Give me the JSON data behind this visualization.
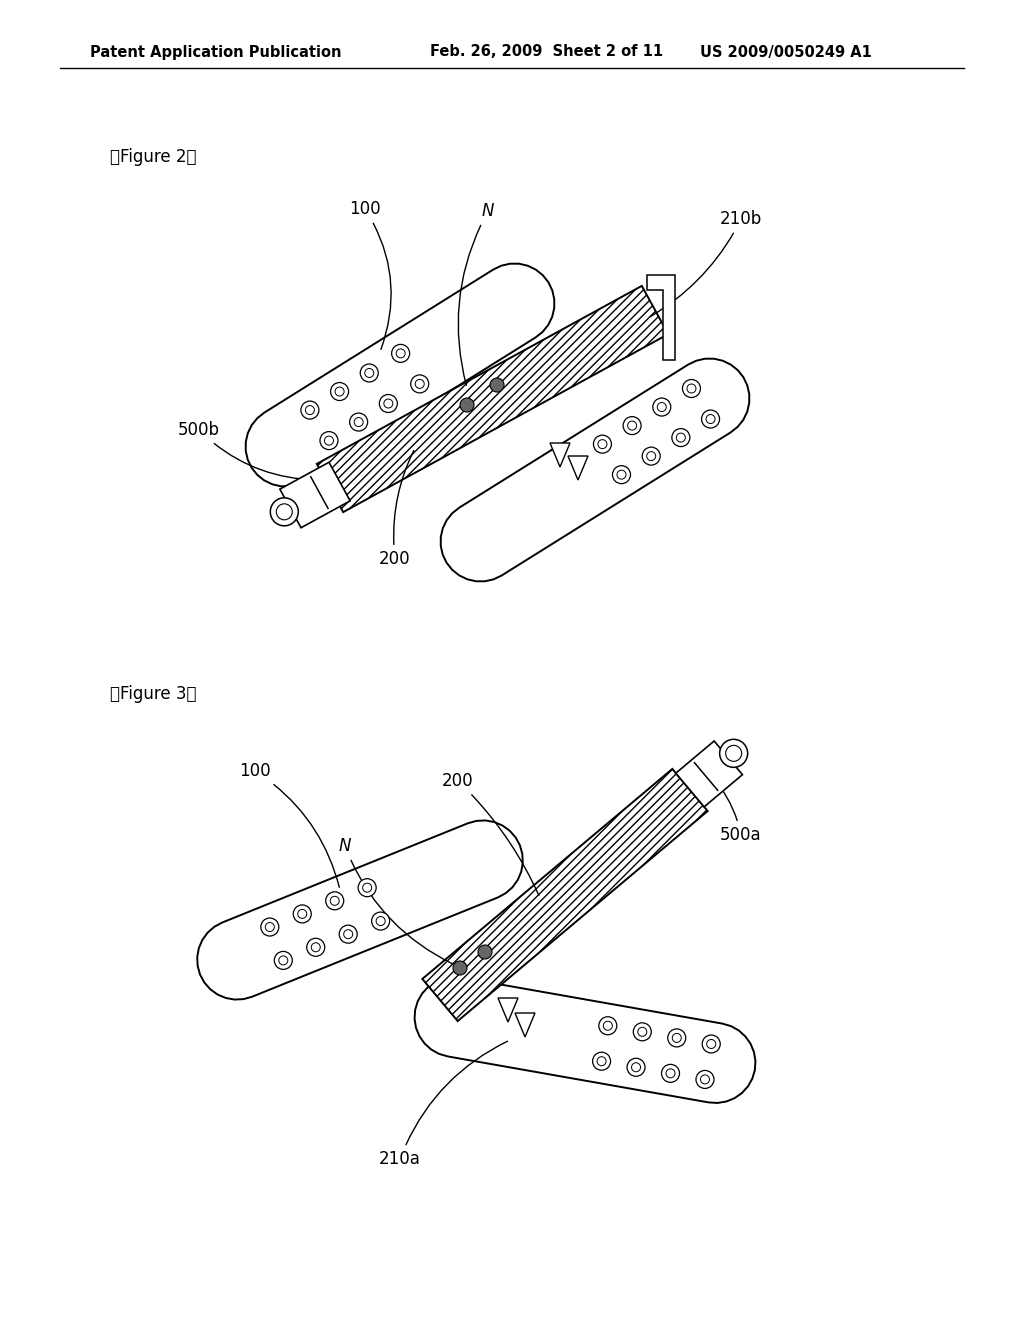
{
  "bg_color": "#ffffff",
  "line_color": "#000000",
  "header_left": "Patent Application Publication",
  "header_mid": "Feb. 26, 2009  Sheet 2 of 11",
  "header_right": "US 2009/0050249 A1",
  "fig2_label": "『Figure 2』",
  "fig3_label": "『Figure 3』",
  "font_size_header": 10.5,
  "font_size_label": 12,
  "font_size_annot": 12
}
